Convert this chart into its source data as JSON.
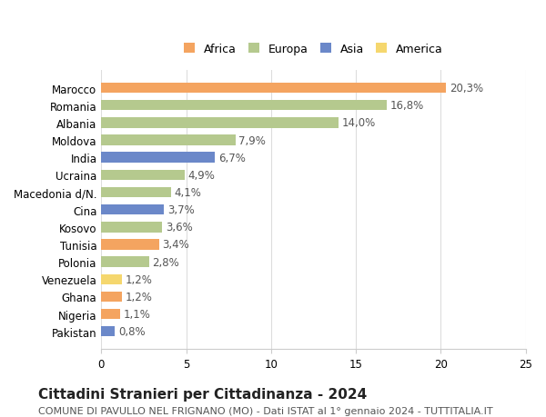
{
  "categories": [
    "Marocco",
    "Romania",
    "Albania",
    "Moldova",
    "India",
    "Ucraina",
    "Macedonia d/N.",
    "Cina",
    "Kosovo",
    "Tunisia",
    "Polonia",
    "Venezuela",
    "Ghana",
    "Nigeria",
    "Pakistan"
  ],
  "values": [
    20.3,
    16.8,
    14.0,
    7.9,
    6.7,
    4.9,
    4.1,
    3.7,
    3.6,
    3.4,
    2.8,
    1.2,
    1.2,
    1.1,
    0.8
  ],
  "labels": [
    "20,3%",
    "16,8%",
    "14,0%",
    "7,9%",
    "6,7%",
    "4,9%",
    "4,1%",
    "3,7%",
    "3,6%",
    "3,4%",
    "2,8%",
    "1,2%",
    "1,2%",
    "1,1%",
    "0,8%"
  ],
  "continents": [
    "Africa",
    "Europa",
    "Europa",
    "Europa",
    "Asia",
    "Europa",
    "Europa",
    "Asia",
    "Europa",
    "Africa",
    "Europa",
    "America",
    "Africa",
    "Africa",
    "Asia"
  ],
  "colors": {
    "Africa": "#F4A460",
    "Europa": "#B5C98E",
    "Asia": "#6B88C9",
    "America": "#F5D76E"
  },
  "title": "Cittadini Stranieri per Cittadinanza - 2024",
  "subtitle": "COMUNE DI PAVULLO NEL FRIGNANO (MO) - Dati ISTAT al 1° gennaio 2024 - TUTTITALIA.IT",
  "xlim": [
    0,
    25
  ],
  "xticks": [
    0,
    5,
    10,
    15,
    20,
    25
  ],
  "background_color": "#ffffff",
  "grid_color": "#dddddd",
  "bar_height": 0.6,
  "label_fontsize": 8.5,
  "title_fontsize": 11,
  "subtitle_fontsize": 8,
  "tick_fontsize": 8.5,
  "legend_order": [
    "Africa",
    "Europa",
    "Asia",
    "America"
  ]
}
